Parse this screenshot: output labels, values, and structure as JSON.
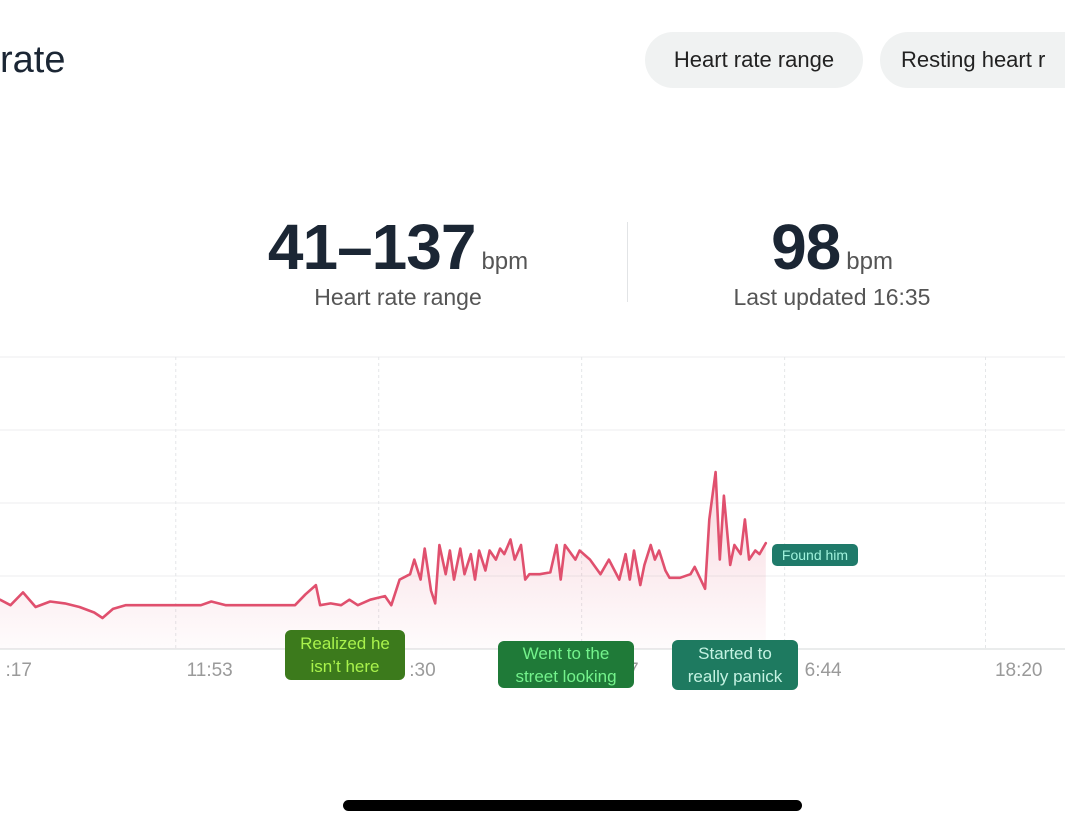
{
  "header": {
    "title": "rate",
    "tabs": [
      "Heart rate range",
      "Resting heart r"
    ]
  },
  "stats": [
    {
      "value": "41–137",
      "unit": "bpm",
      "label": "Heart rate range"
    },
    {
      "value": "98",
      "unit": "bpm",
      "label": "Last updated 16:35"
    }
  ],
  "chart_data": {
    "type": "line",
    "x": [
      629,
      634,
      640,
      646,
      653,
      660,
      667,
      674,
      678,
      683,
      689,
      701,
      713,
      725,
      730,
      737,
      749,
      760,
      770,
      775,
      780,
      782,
      787,
      792,
      796,
      800,
      806,
      813,
      816,
      820,
      825,
      827,
      830,
      832,
      835,
      837,
      839,
      842,
      844,
      846,
      849,
      851,
      854,
      856,
      858,
      861,
      863,
      866,
      868,
      870,
      873,
      875,
      878,
      880,
      882,
      887,
      892,
      895,
      897,
      899,
      904,
      906,
      911,
      916,
      920,
      925,
      928,
      930,
      932,
      935,
      937,
      940,
      942,
      944,
      947,
      949,
      954,
      959,
      961,
      966,
      968,
      971,
      973,
      975,
      978,
      980,
      983,
      985,
      987,
      990,
      992,
      995
    ],
    "values": [
      67,
      64,
      71,
      63,
      66,
      65,
      63,
      60,
      57,
      62,
      64,
      64,
      64,
      64,
      66,
      64,
      64,
      64,
      64,
      70,
      75,
      64,
      65,
      64,
      67,
      64,
      67,
      69,
      64,
      78,
      81,
      89,
      78,
      95,
      72,
      65,
      97,
      81,
      94,
      78,
      95,
      81,
      92,
      78,
      94,
      83,
      94,
      89,
      95,
      92,
      100,
      89,
      97,
      78,
      81,
      81,
      82,
      97,
      78,
      97,
      89,
      94,
      89,
      81,
      89,
      78,
      92,
      78,
      94,
      75,
      86,
      97,
      89,
      94,
      83,
      79,
      79,
      81,
      85,
      73,
      111,
      137,
      89,
      124,
      86,
      97,
      92,
      111,
      89,
      94,
      92,
      98
    ],
    "color": "#e0506e",
    "xlim": [
      629,
      1138
    ],
    "ylim": [
      40,
      200
    ],
    "xticks": [
      {
        "value": 617,
        "label": ":17"
      },
      {
        "value": 713,
        "label": "11:53"
      },
      {
        "value": 810,
        "label": ":30"
      },
      {
        "value": 907,
        "label": "7"
      },
      {
        "value": 1004,
        "label": "6:44"
      },
      {
        "value": 1100,
        "label": "18:20"
      }
    ],
    "yticks": [
      40,
      80,
      120,
      160,
      200
    ],
    "grid": true,
    "annotations": [
      "Realized he\nisn’t here",
      "Went  to the\nstreet  looking",
      "Started to\nreally panick",
      "Found him"
    ]
  }
}
